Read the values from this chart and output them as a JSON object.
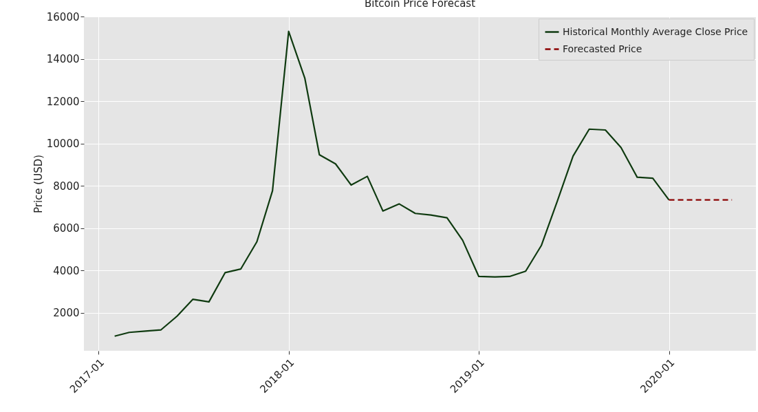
{
  "chart_data": {
    "type": "line",
    "title": "Bitcoin Price Forecast",
    "ylabel": "Price (USD)",
    "series": [
      {
        "name": "Historical Monthly Average Close Price",
        "color": "#0f3a10",
        "line_style": "solid",
        "x": [
          "2017-02",
          "2017-03",
          "2017-04",
          "2017-05",
          "2017-06",
          "2017-07",
          "2017-08",
          "2017-09",
          "2017-10",
          "2017-11",
          "2017-12",
          "2018-01",
          "2018-02",
          "2018-03",
          "2018-04",
          "2018-05",
          "2018-06",
          "2018-07",
          "2018-08",
          "2018-09",
          "2018-10",
          "2018-11",
          "2018-12",
          "2019-01",
          "2019-02",
          "2019-03",
          "2019-04",
          "2019-05",
          "2019-06",
          "2019-07",
          "2019-08",
          "2019-09",
          "2019-10",
          "2019-11",
          "2019-12",
          "2020-01"
        ],
        "values": [
          900,
          1080,
          1140,
          1200,
          1850,
          2640,
          2520,
          3900,
          4070,
          5360,
          7770,
          15300,
          13090,
          9470,
          9040,
          8040,
          8450,
          6810,
          7150,
          6700,
          6620,
          6490,
          5430,
          3720,
          3700,
          3720,
          3970,
          5180,
          7300,
          9410,
          10680,
          10640,
          9810,
          8410,
          8360,
          7340
        ]
      },
      {
        "name": "Forecasted Price",
        "color": "#8b0000",
        "line_style": "dashed",
        "x": [
          "2020-01",
          "2020-02",
          "2020-03",
          "2020-04",
          "2020-05"
        ],
        "values": [
          7340,
          7340,
          7340,
          7340,
          7340
        ]
      }
    ],
    "xlim": [
      "2016-12-04",
      "2020-06-16"
    ],
    "xticks": [
      "2017-01",
      "2018-01",
      "2019-01",
      "2020-01"
    ],
    "ylim": [
      210,
      16000
    ],
    "yticks": [
      2000,
      4000,
      6000,
      8000,
      10000,
      12000,
      14000,
      16000
    ],
    "grid": true,
    "legend": "top right"
  }
}
